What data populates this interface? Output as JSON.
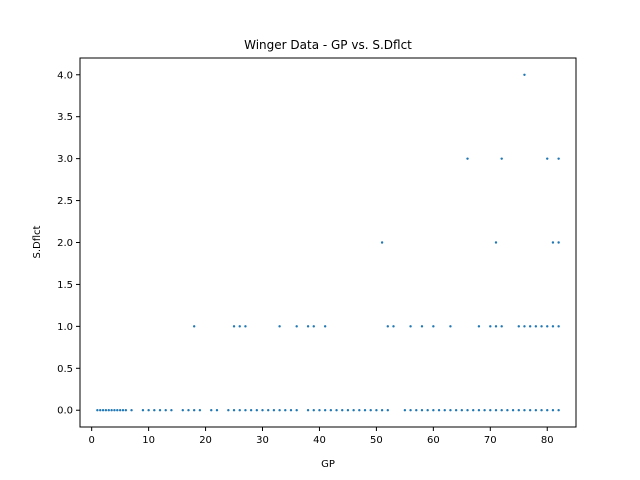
{
  "chart_data": {
    "type": "scatter",
    "title": "Winger Data - GP vs. S.Dflct",
    "xlabel": "GP",
    "ylabel": "S.Dflct",
    "xlim": [
      -2.05,
      85.05
    ],
    "ylim": [
      -0.2,
      4.2
    ],
    "xticks": [
      0,
      10,
      20,
      30,
      40,
      50,
      60,
      70,
      80
    ],
    "yticks": [
      0.0,
      0.5,
      1.0,
      1.5,
      2.0,
      2.5,
      3.0,
      3.5,
      4.0
    ],
    "xtick_labels": [
      "0",
      "10",
      "20",
      "30",
      "40",
      "50",
      "60",
      "70",
      "80"
    ],
    "ytick_labels": [
      "0.0",
      "0.5",
      "1.0",
      "1.5",
      "2.0",
      "2.5",
      "3.0",
      "3.5",
      "4.0"
    ],
    "grid": false,
    "marker_color": "#1f77b4",
    "x": [
      1,
      1.5,
      2,
      2.5,
      3,
      3.5,
      4,
      4.5,
      5,
      5.5,
      6,
      7,
      9,
      10,
      11,
      12,
      13,
      14,
      16,
      17,
      18,
      19,
      21,
      22,
      24,
      25,
      26,
      27,
      28,
      29,
      30,
      31,
      32,
      33,
      34,
      35,
      36,
      38,
      39,
      40,
      41,
      42,
      43,
      44,
      45,
      46,
      47,
      48,
      49,
      50,
      51,
      52,
      55,
      56,
      57,
      58,
      59,
      60,
      61,
      62,
      63,
      64,
      65,
      66,
      67,
      68,
      69,
      70,
      71,
      72,
      73,
      74,
      75,
      76,
      77,
      78,
      79,
      80,
      81,
      82,
      18,
      25,
      26,
      27,
      33,
      36,
      38,
      39,
      41,
      52,
      53,
      56,
      58,
      60,
      63,
      68,
      70,
      71,
      72,
      75,
      76,
      77,
      78,
      79,
      80,
      81,
      82,
      51,
      71,
      81,
      82,
      66,
      72,
      80,
      82,
      76
    ],
    "y": [
      0,
      0,
      0,
      0,
      0,
      0,
      0,
      0,
      0,
      0,
      0,
      0,
      0,
      0,
      0,
      0,
      0,
      0,
      0,
      0,
      0,
      0,
      0,
      0,
      0,
      0,
      0,
      0,
      0,
      0,
      0,
      0,
      0,
      0,
      0,
      0,
      0,
      0,
      0,
      0,
      0,
      0,
      0,
      0,
      0,
      0,
      0,
      0,
      0,
      0,
      0,
      0,
      0,
      0,
      0,
      0,
      0,
      0,
      0,
      0,
      0,
      0,
      0,
      0,
      0,
      0,
      0,
      0,
      0,
      0,
      0,
      0,
      0,
      0,
      0,
      0,
      0,
      0,
      0,
      0,
      1,
      1,
      1,
      1,
      1,
      1,
      1,
      1,
      1,
      1,
      1,
      1,
      1,
      1,
      1,
      1,
      1,
      1,
      1,
      1,
      1,
      1,
      1,
      1,
      1,
      1,
      1,
      2,
      2,
      2,
      2,
      3,
      3,
      3,
      3,
      4
    ]
  }
}
